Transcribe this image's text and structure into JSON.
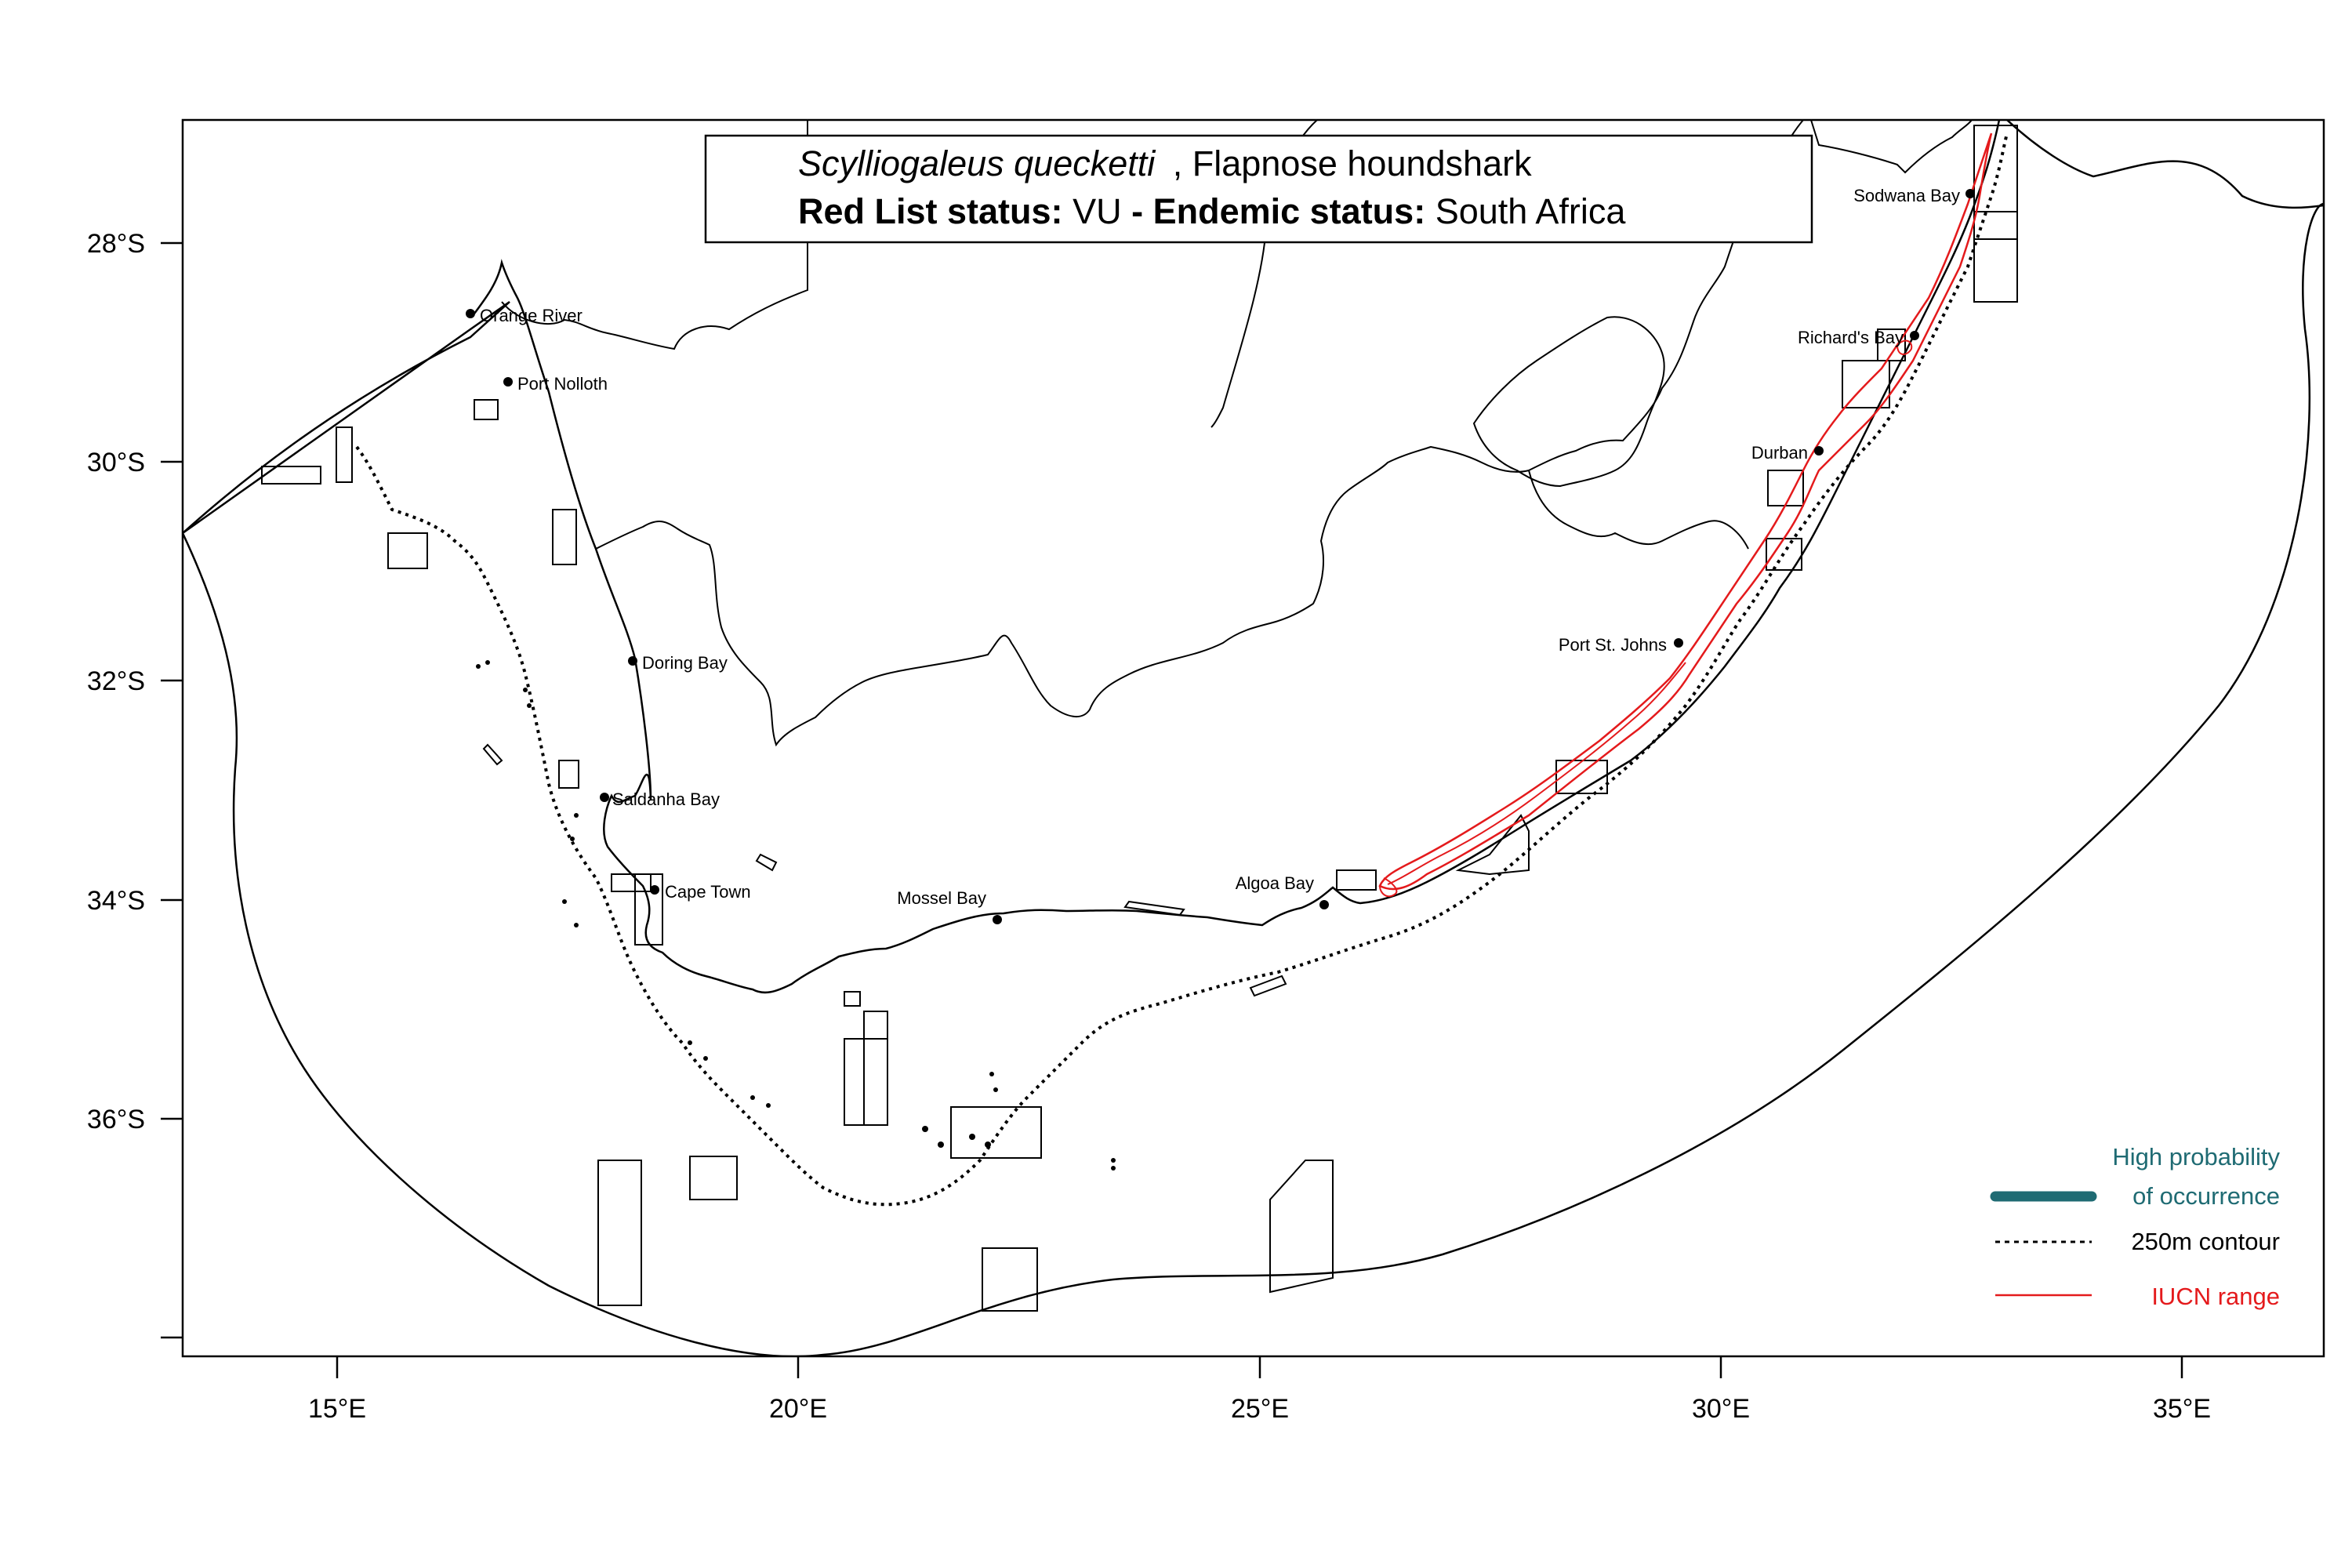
{
  "title": {
    "species_italic": "Scylliogaleus quecketti",
    "species_common": ", Flapnose houndshark",
    "redlist_label": "Red List status:",
    "redlist_value": "VU",
    "separator": " - ",
    "endemic_label": "Endemic status:",
    "endemic_value": "South Africa"
  },
  "axes": {
    "y_ticks": [
      "28°S",
      "30°S",
      "32°S",
      "34°S",
      "36°S"
    ],
    "x_ticks": [
      "15°E",
      "20°E",
      "25°E",
      "30°E",
      "35°E"
    ]
  },
  "places": [
    {
      "name": "Orange River"
    },
    {
      "name": "Port Nolloth"
    },
    {
      "name": "Doring Bay"
    },
    {
      "name": "Saldanha Bay"
    },
    {
      "name": "Cape Town"
    },
    {
      "name": "Mossel Bay"
    },
    {
      "name": "Algoa Bay"
    },
    {
      "name": "Port St. Johns"
    },
    {
      "name": "Durban"
    },
    {
      "name": "Richard's Bay"
    },
    {
      "name": "Sodwana Bay"
    }
  ],
  "legend": {
    "high_prob_line1": "High probability",
    "high_prob_line2": "of occurrence",
    "contour": "250m contour",
    "iucn": "IUCN range"
  },
  "colors": {
    "high_probability": "#1f6b73",
    "iucn_range": "#e41a1c",
    "outline": "#000000"
  }
}
